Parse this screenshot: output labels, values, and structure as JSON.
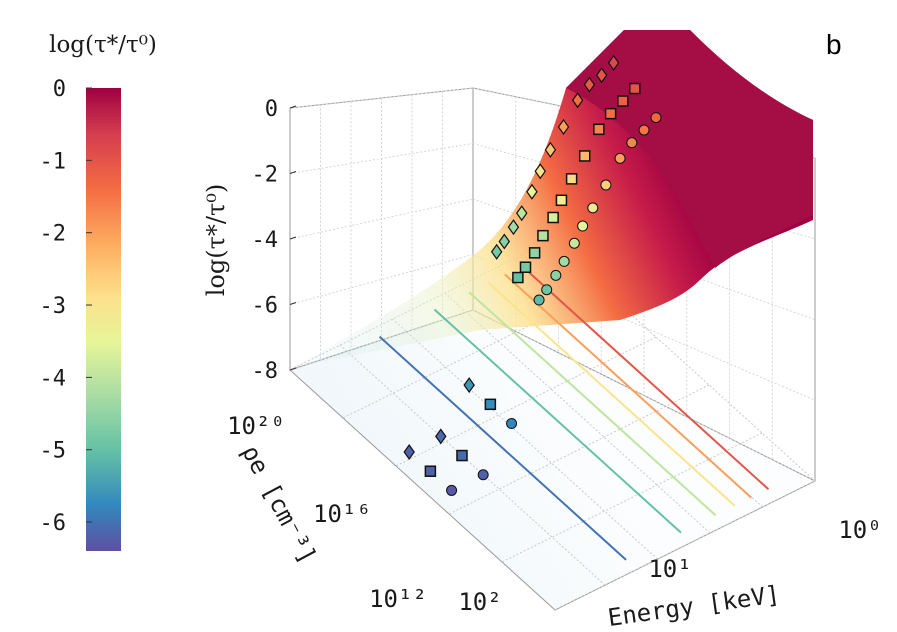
{
  "panel_label": "b",
  "colorbar": {
    "title": "log(τ*/τ⁰)",
    "ticks": [
      "0",
      "-1",
      "-2",
      "-3",
      "-4",
      "-5",
      "-6"
    ],
    "range": [
      -6.4,
      0
    ]
  },
  "chart_data": {
    "type": "surface-3d",
    "zlabel": "log(τ*/τ⁰)",
    "xlabel": "Energy [keV]",
    "ylabel": "ρe [cm⁻³]",
    "z_ticks": [
      "0",
      "-2",
      "-4",
      "-6",
      "-8"
    ],
    "z_range": [
      -8,
      0
    ],
    "energy_ticks": [
      "10⁰",
      "10¹",
      "10²"
    ],
    "density_ticks": [
      "10²⁰",
      "10¹⁶",
      "10¹²"
    ],
    "energy_range_keV": [
      1,
      300
    ],
    "density_range_cm3": [
      1000000000000.0,
      1e+22
    ],
    "contour_levels": [
      -6,
      -5,
      -4,
      -3,
      -2,
      -1
    ],
    "colormap": "spectral",
    "series": [
      {
        "marker": "diamond",
        "color_by": "value",
        "points": [
          {
            "energy": 1.0,
            "z": -0.8
          },
          {
            "energy": 1.3,
            "z": -1.0
          },
          {
            "energy": 1.7,
            "z": -1.1
          },
          {
            "energy": 2.2,
            "z": -1.4
          },
          {
            "energy": 3.0,
            "z": -2.0
          },
          {
            "energy": 4.0,
            "z": -2.5
          },
          {
            "energy": 5.0,
            "z": -3.0
          },
          {
            "energy": 6.0,
            "z": -3.5
          },
          {
            "energy": 7.5,
            "z": -4.0
          },
          {
            "energy": 9.0,
            "z": -4.3
          },
          {
            "energy": 11.0,
            "z": -4.6
          },
          {
            "energy": 13.0,
            "z": -4.8
          },
          {
            "energy": 30.0,
            "z": -5.6
          },
          {
            "energy": 100.0,
            "z": -6.1
          },
          {
            "energy": 200.0,
            "z": -6.2
          }
        ]
      },
      {
        "marker": "square",
        "color_by": "value",
        "points": [
          {
            "energy": 1.0,
            "z": -1.0
          },
          {
            "energy": 1.3,
            "z": -1.2
          },
          {
            "energy": 1.7,
            "z": -1.4
          },
          {
            "energy": 2.2,
            "z": -1.7
          },
          {
            "energy": 3.0,
            "z": -2.3
          },
          {
            "energy": 4.0,
            "z": -2.8
          },
          {
            "energy": 5.0,
            "z": -3.3
          },
          {
            "energy": 6.0,
            "z": -3.7
          },
          {
            "energy": 7.5,
            "z": -4.1
          },
          {
            "energy": 9.0,
            "z": -4.5
          },
          {
            "energy": 11.0,
            "z": -4.8
          },
          {
            "energy": 13.0,
            "z": -5.0
          },
          {
            "energy": 30.0,
            "z": -5.7
          },
          {
            "energy": 100.0,
            "z": -6.1
          },
          {
            "energy": 200.0,
            "z": -6.2
          }
        ]
      },
      {
        "marker": "circle",
        "color_by": "value",
        "points": [
          {
            "energy": 1.0,
            "z": -1.3
          },
          {
            "energy": 1.3,
            "z": -1.5
          },
          {
            "energy": 1.7,
            "z": -1.7
          },
          {
            "energy": 2.2,
            "z": -2.0
          },
          {
            "energy": 3.0,
            "z": -2.6
          },
          {
            "energy": 4.0,
            "z": -3.1
          },
          {
            "energy": 5.0,
            "z": -3.5
          },
          {
            "energy": 6.0,
            "z": -3.9
          },
          {
            "energy": 7.5,
            "z": -4.3
          },
          {
            "energy": 9.0,
            "z": -4.6
          },
          {
            "energy": 11.0,
            "z": -4.9
          },
          {
            "energy": 13.0,
            "z": -5.1
          },
          {
            "energy": 30.0,
            "z": -5.8
          },
          {
            "energy": 100.0,
            "z": -6.2
          },
          {
            "energy": 200.0,
            "z": -6.3
          }
        ]
      }
    ]
  }
}
